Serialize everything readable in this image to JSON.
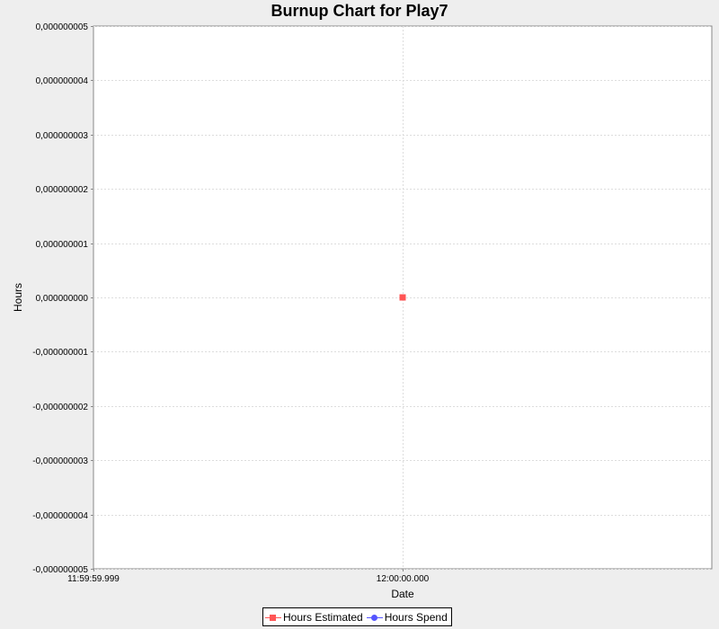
{
  "colors": {
    "background": "#eeeeee",
    "plot_background": "#ffffff",
    "gridline": "#dddddd",
    "estimated": "#ff5555",
    "spend": "#5555ff"
  },
  "chart_data": {
    "type": "line",
    "title": "Burnup Chart for Play7",
    "xlabel": "Date",
    "ylabel": "Hours",
    "x_ticks": [
      "11:59:59.999",
      "12:00:00.000"
    ],
    "y_ticks": [
      "0,000000005",
      "0,000000004",
      "0,000000003",
      "0,000000002",
      "0,000000001",
      "0,000000000",
      "-0,000000001",
      "-0,000000002",
      "-0,000000003",
      "-0,000000004",
      "-0,000000005"
    ],
    "y_tick_values": [
      5e-09,
      4e-09,
      3e-09,
      2e-09,
      1e-09,
      0,
      -1e-09,
      -2e-09,
      -3e-09,
      -4e-09,
      -5e-09
    ],
    "ylim": [
      -5e-09,
      5e-09
    ],
    "xlim": [
      "11:59:59.999",
      "12:00:00.001"
    ],
    "grid": true,
    "legend_position": "bottom",
    "series": [
      {
        "name": "Hours Estimated",
        "marker": "square",
        "color": "#ff5555",
        "points": [
          {
            "x": "12:00:00.000",
            "y": 0
          }
        ]
      },
      {
        "name": "Hours Spend",
        "marker": "circle",
        "color": "#5555ff",
        "points": []
      }
    ]
  },
  "legend": {
    "items": [
      {
        "label": "Hours Estimated",
        "color": "#ff5555",
        "marker": "square"
      },
      {
        "label": "Hours Spend",
        "color": "#5555ff",
        "marker": "circle"
      }
    ]
  }
}
